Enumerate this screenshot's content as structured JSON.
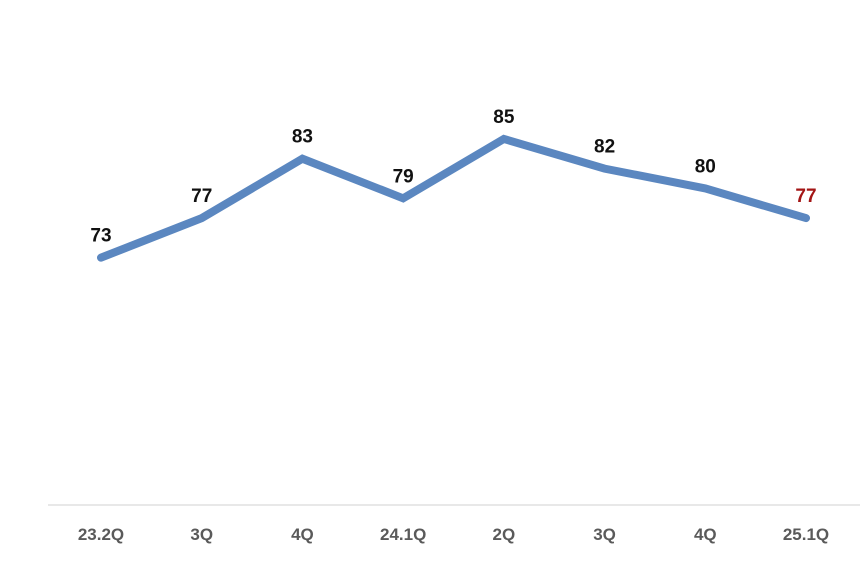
{
  "chart_data": {
    "type": "line",
    "title": "",
    "xlabel": "",
    "ylabel": "",
    "categories": [
      "23.2Q",
      "3Q",
      "4Q",
      "24.1Q",
      "2Q",
      "3Q",
      "4Q",
      "25.1Q"
    ],
    "series": [
      {
        "values": [
          73,
          77,
          83,
          79,
          85,
          82,
          80,
          77
        ],
        "data_labels": [
          "73",
          "77",
          "83",
          "79",
          "85",
          "82",
          "80",
          "77"
        ]
      }
    ],
    "ylim": [
      48,
      95
    ],
    "grid": false,
    "legend": "none",
    "colors": {
      "line": "#5b87c0",
      "label": "#111111",
      "highlight_label": "#a31515",
      "axis": "#d9d9d9",
      "tick": "#5a5a5a"
    },
    "highlight_index": 7
  }
}
